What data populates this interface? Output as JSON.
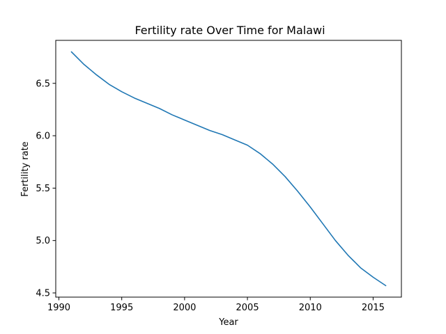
{
  "chart_data": {
    "type": "line",
    "title": "Fertility rate Over Time for Malawi",
    "xlabel": "Year",
    "ylabel": "Fertility rate",
    "xlim": [
      1989.75,
      2017.25
    ],
    "ylim": [
      4.46,
      6.91
    ],
    "xticks": [
      1990,
      1995,
      2000,
      2005,
      2010,
      2015
    ],
    "yticks": [
      4.5,
      5.0,
      5.5,
      6.0,
      6.5
    ],
    "grid": false,
    "colors": {
      "line": "#1f77b4",
      "axes": "#000000",
      "background": "#ffffff"
    },
    "series": [
      {
        "x": [
          1991,
          1992,
          1993,
          1994,
          1995,
          1996,
          1997,
          1998,
          1999,
          2000,
          2001,
          2002,
          2003,
          2004,
          2005,
          2006,
          2007,
          2008,
          2009,
          2010,
          2011,
          2012,
          2013,
          2014,
          2015,
          2016
        ],
        "values": [
          6.8,
          6.68,
          6.58,
          6.49,
          6.42,
          6.36,
          6.31,
          6.26,
          6.2,
          6.15,
          6.1,
          6.05,
          6.01,
          5.96,
          5.91,
          5.83,
          5.73,
          5.61,
          5.47,
          5.32,
          5.16,
          5.0,
          4.86,
          4.74,
          4.65,
          4.57
        ]
      }
    ]
  }
}
